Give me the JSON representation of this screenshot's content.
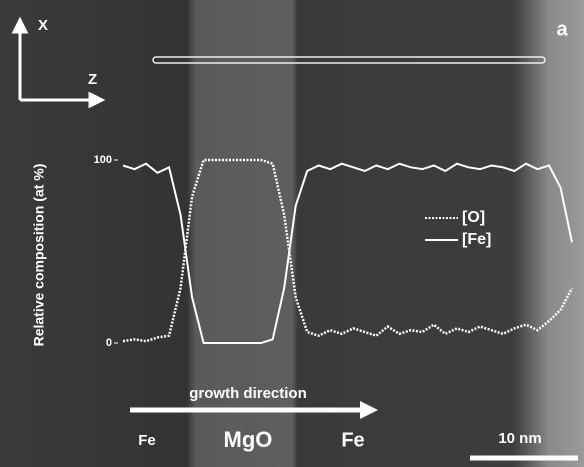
{
  "chart_data": {
    "type": "line",
    "ylabel": "Relative composition (at %)",
    "ylim": [
      0,
      100
    ],
    "yticks": [
      0,
      100
    ],
    "series": [
      {
        "name": "[O]",
        "color": "#ffffff",
        "dashed": true,
        "values": [
          1,
          2,
          1,
          3,
          4,
          30,
          80,
          100,
          100,
          100,
          100,
          100,
          100,
          98,
          70,
          25,
          6,
          4,
          7,
          5,
          8,
          6,
          4,
          9,
          5,
          7,
          6,
          10,
          5,
          8,
          6,
          9,
          7,
          5,
          8,
          10,
          7,
          12,
          18,
          30
        ]
      },
      {
        "name": "[Fe]",
        "color": "#ffffff",
        "dashed": false,
        "values": [
          97,
          95,
          98,
          93,
          96,
          70,
          25,
          0,
          0,
          0,
          0,
          0,
          0,
          2,
          30,
          75,
          94,
          97,
          95,
          98,
          96,
          94,
          97,
          95,
          98,
          96,
          95,
          97,
          94,
          98,
          96,
          95,
          97,
          96,
          94,
          98,
          95,
          97,
          85,
          55
        ]
      }
    ],
    "annotations": [
      "X",
      "Z",
      "a",
      "growth direction",
      "Fe",
      "MgO",
      "Fe",
      "10 nm"
    ]
  }
}
